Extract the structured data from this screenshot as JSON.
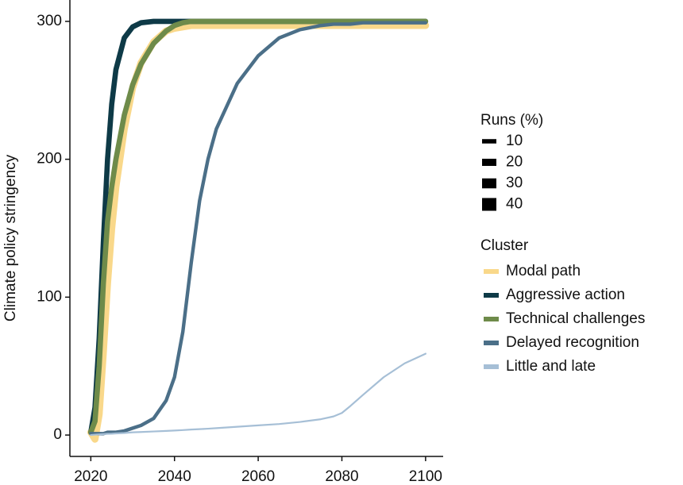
{
  "chart_data": {
    "type": "line",
    "y_label": "Climate policy stringency",
    "xlim": [
      2015,
      2104.2
    ],
    "ylim": [
      -15.5,
      315.5
    ],
    "xticks": [
      2020,
      2040,
      2060,
      2080,
      2100
    ],
    "yticks": [
      0,
      100,
      200,
      300
    ],
    "x": [
      2020,
      2021,
      2022,
      2023,
      2024,
      2025,
      2026,
      2028,
      2030,
      2032,
      2035,
      2038,
      2040,
      2042,
      2044,
      2046,
      2048,
      2050,
      2055,
      2060,
      2065,
      2070,
      2075,
      2078,
      2080,
      2082,
      2085,
      2090,
      2095,
      2100
    ],
    "runs_title": "Runs (%)",
    "runs_legend": [
      10,
      20,
      30,
      40
    ],
    "legend_title": "Cluster",
    "series": [
      {
        "name": "Modal path",
        "color": "#f9d88a",
        "runs": 40,
        "values": [
          2,
          -3,
          15,
          60,
          110,
          150,
          180,
          222,
          252,
          270,
          285,
          293,
          295,
          296,
          297,
          297,
          297,
          297,
          297,
          297,
          297,
          297,
          297,
          297,
          297,
          297,
          297,
          297,
          297,
          297
        ]
      },
      {
        "name": "Aggressive action",
        "color": "#0e3a47",
        "runs": 30,
        "values": [
          2,
          20,
          70,
          140,
          200,
          240,
          265,
          288,
          296,
          299,
          300,
          300,
          300,
          300,
          300,
          300,
          300,
          300,
          300,
          300,
          300,
          300,
          300,
          300,
          300,
          300,
          300,
          300,
          300,
          300
        ]
      },
      {
        "name": "Technical challenges",
        "color": "#6e8b4a",
        "runs": 30,
        "values": [
          2,
          10,
          50,
          110,
          155,
          180,
          200,
          232,
          254,
          269,
          284,
          293,
          297,
          299,
          300,
          300,
          300,
          300,
          300,
          300,
          300,
          300,
          300,
          300,
          300,
          300,
          300,
          300,
          300,
          300
        ]
      },
      {
        "name": "Delayed recognition",
        "color": "#4b6f88",
        "runs": 20,
        "values": [
          1,
          1,
          1,
          1,
          2,
          2,
          2,
          3,
          5,
          7,
          12,
          25,
          42,
          75,
          125,
          170,
          200,
          222,
          255,
          275,
          288,
          294,
          297,
          298,
          298,
          298,
          299,
          299,
          299,
          299
        ]
      },
      {
        "name": "Little and late",
        "color": "#a6bfd6",
        "runs": 10,
        "values": [
          0,
          0.3,
          0.5,
          0.7,
          0.9,
          1,
          1.2,
          1.5,
          2,
          2.2,
          2.6,
          3,
          3.3,
          3.6,
          4,
          4.3,
          4.6,
          5,
          6,
          7,
          8,
          9.5,
          11.5,
          13.5,
          16,
          21,
          29,
          42,
          52,
          59
        ]
      }
    ]
  }
}
